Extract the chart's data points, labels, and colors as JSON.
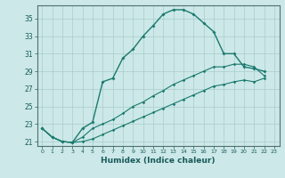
{
  "xlabel": "Humidex (Indice chaleur)",
  "bg_color": "#cce8e8",
  "grid_color": "#aacccc",
  "line_color": "#1a7a6e",
  "xlim": [
    -0.5,
    23.5
  ],
  "ylim": [
    20.5,
    36.5
  ],
  "xticks": [
    0,
    1,
    2,
    3,
    4,
    5,
    6,
    7,
    8,
    9,
    10,
    11,
    12,
    13,
    14,
    15,
    16,
    17,
    18,
    19,
    20,
    21,
    22,
    23
  ],
  "yticks": [
    21,
    23,
    25,
    27,
    29,
    31,
    33,
    35
  ],
  "series1_x": [
    0,
    1,
    2,
    3,
    4,
    5,
    6,
    7,
    8,
    9,
    10,
    11,
    12,
    13,
    14,
    15,
    16,
    17,
    18,
    19,
    20,
    21,
    22
  ],
  "series1_y": [
    22.5,
    21.5,
    21.0,
    20.9,
    22.5,
    23.2,
    27.8,
    28.2,
    30.5,
    31.5,
    33.0,
    34.2,
    35.5,
    36.0,
    36.0,
    35.5,
    34.5,
    33.5,
    31.0,
    31.0,
    29.5,
    29.3,
    29.0
  ],
  "series2_x": [
    0,
    1,
    2,
    3,
    4,
    5,
    6,
    7,
    8,
    9,
    10,
    11,
    12,
    13,
    14,
    15,
    16,
    17,
    18,
    19,
    20,
    21,
    22
  ],
  "series2_y": [
    22.5,
    21.5,
    21.0,
    20.9,
    21.5,
    22.5,
    23.0,
    23.5,
    24.2,
    25.0,
    25.5,
    26.2,
    26.8,
    27.5,
    28.0,
    28.5,
    29.0,
    29.5,
    29.5,
    29.8,
    29.8,
    29.5,
    28.5
  ],
  "series3_x": [
    0,
    1,
    2,
    3,
    4,
    5,
    6,
    7,
    8,
    9,
    10,
    11,
    12,
    13,
    14,
    15,
    16,
    17,
    18,
    19,
    20,
    21,
    22
  ],
  "series3_y": [
    22.5,
    21.5,
    21.0,
    20.9,
    21.0,
    21.3,
    21.8,
    22.3,
    22.8,
    23.3,
    23.8,
    24.3,
    24.8,
    25.3,
    25.8,
    26.3,
    26.8,
    27.3,
    27.5,
    27.8,
    28.0,
    27.8,
    28.2
  ]
}
